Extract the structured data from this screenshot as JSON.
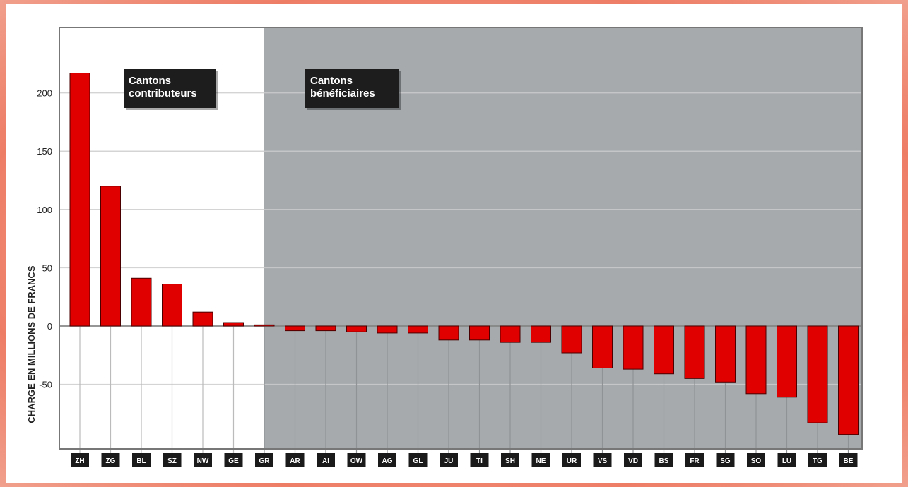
{
  "chart_data": {
    "type": "bar",
    "ylabel": "CHARGE EN MILLIONS DE FRANCS",
    "ylim": [
      -105,
      255
    ],
    "yticks": [
      200,
      150,
      100,
      50,
      0,
      -50
    ],
    "ytick_labels": [
      "200",
      "150",
      "100",
      "50",
      "0",
      "-50"
    ],
    "grid": true,
    "categories": [
      "ZH",
      "ZG",
      "BL",
      "SZ",
      "NW",
      "GE",
      "GR",
      "AR",
      "AI",
      "OW",
      "AG",
      "GL",
      "JU",
      "TI",
      "SH",
      "NE",
      "UR",
      "VS",
      "VD",
      "BS",
      "FR",
      "SG",
      "SO",
      "LU",
      "TG",
      "BE"
    ],
    "series": [
      {
        "values": [
          217,
          120,
          41,
          36,
          12,
          3,
          1,
          -4,
          -4,
          -5,
          -6,
          -6,
          -12,
          -12,
          -14,
          -14,
          -23,
          -36,
          -37,
          -41,
          -45,
          -48,
          -58,
          -61,
          -83,
          -93
        ]
      }
    ],
    "bar_color": "#e00000",
    "contributor_count": 6,
    "regions": [
      {
        "label_line1": "Cantons",
        "label_line2": "contributeurs",
        "background": "#ffffff"
      },
      {
        "label_line1": "Cantons",
        "label_line2": "bénéficiaires",
        "background": "#a6aaad"
      }
    ]
  }
}
